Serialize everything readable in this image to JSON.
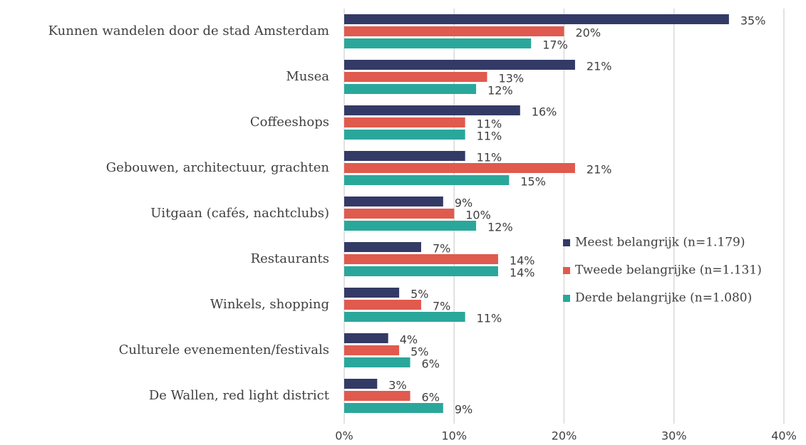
{
  "chart_data": {
    "type": "hbar",
    "categories": [
      "Kunnen wandelen door de stad Amsterdam",
      "Musea",
      "Coffeeshops",
      "Gebouwen, architectuur, grachten",
      "Uitgaan (cafés, nachtclubs)",
      "Restaurants",
      "Winkels, shopping",
      "Culturele evenementen/festivals",
      "De Wallen, red light district"
    ],
    "series": [
      {
        "name": "Meest belangrijk (n=1.179)",
        "color": "#333a66",
        "values": [
          35,
          21,
          16,
          11,
          9,
          7,
          5,
          4,
          3
        ],
        "value_labels": [
          "35%",
          "21%",
          "16%",
          "11%",
          "9%",
          "7%",
          "5%",
          "4%",
          "3%"
        ]
      },
      {
        "name": "Tweede belangrijke (n=1.131)",
        "color": "#e05a4e",
        "values": [
          20,
          13,
          11,
          21,
          10,
          14,
          7,
          5,
          6
        ],
        "value_labels": [
          "20%",
          "13%",
          "11%",
          "21%",
          "10%",
          "14%",
          "7%",
          "5%",
          "6%"
        ]
      },
      {
        "name": "Derde belangrijke (n=1.080)",
        "color": "#2aa79b",
        "values": [
          17,
          12,
          11,
          15,
          12,
          14,
          11,
          6,
          9
        ],
        "value_labels": [
          "17%",
          "12%",
          "11%",
          "15%",
          "12%",
          "14%",
          "11%",
          "6%",
          "9%"
        ]
      }
    ],
    "xlim": [
      0,
      40
    ],
    "xticks": [
      {
        "value": 0,
        "label": "0%"
      },
      {
        "value": 10,
        "label": "10%"
      },
      {
        "value": 20,
        "label": "20%"
      },
      {
        "value": 30,
        "label": "30%"
      },
      {
        "value": 40,
        "label": "40%"
      }
    ],
    "grid": true,
    "legend_position": "right"
  }
}
